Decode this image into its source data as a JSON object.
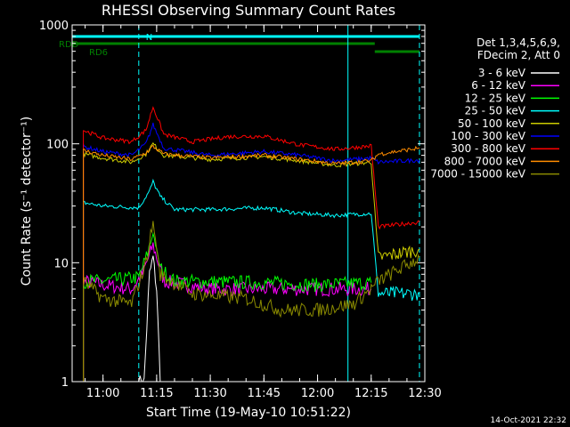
{
  "chart_data": {
    "type": "line",
    "title": "RHESSI Observing Summary Count Rates",
    "xlabel": "Start Time (19-May-10 10:51:22)",
    "ylabel": "Count Rate (s⁻¹ detector⁻¹)",
    "ylim": [
      1,
      1000
    ],
    "yscale": "log",
    "xlim": [
      "10:51:22",
      "12:30:00"
    ],
    "x_ticks": [
      "11:00",
      "11:15",
      "11:30",
      "11:45",
      "12:00",
      "12:15",
      "12:30"
    ],
    "y_ticks": [
      "1",
      "10",
      "100",
      "1000"
    ],
    "legend_header": [
      "Det 1,3,4,5,6,9,",
      "FDecim 2, Att 0"
    ],
    "legend_position": "right",
    "timestamp": "14-Oct-2021 22:32",
    "flags": [
      {
        "label": "N",
        "color": "#00ffff",
        "segments": [
          [
            "10:51:22",
            "11:10:00"
          ],
          [
            "11:10:00",
            "12:08:30"
          ],
          [
            "12:08:30",
            "12:28:30"
          ]
        ]
      },
      {
        "label": "RDD",
        "color": "#008000",
        "segments": [
          [
            "10:51:22",
            "12:16:00"
          ]
        ]
      },
      {
        "label": "RD6",
        "color": "#008000",
        "segments": [
          [
            "12:16:00",
            "12:28:30"
          ]
        ]
      }
    ],
    "data_gaps": [
      [
        "10:51:22",
        "10:54:30"
      ],
      [
        "12:16:00",
        "12:17:00"
      ]
    ],
    "dashed_markers": [
      "11:10:00",
      "12:28:30"
    ],
    "solid_markers": [
      "12:08:30"
    ],
    "series": [
      {
        "name": "3 - 6 keV",
        "color": "#ffffff",
        "points": [
          [
            "11:10:00",
            1
          ],
          [
            "11:11:30",
            1
          ],
          [
            "11:13:00",
            8
          ],
          [
            "11:14:00",
            11
          ],
          [
            "11:15:00",
            6
          ],
          [
            "11:16:00",
            1
          ]
        ]
      },
      {
        "name": "6 - 12 keV",
        "color": "#ff00ff",
        "points": [
          [
            "10:54:30",
            7
          ],
          [
            "11:00:00",
            6.5
          ],
          [
            "11:08:00",
            6
          ],
          [
            "11:11:00",
            8
          ],
          [
            "11:14:00",
            14
          ],
          [
            "11:17:00",
            7
          ],
          [
            "11:30:00",
            6
          ],
          [
            "11:45:00",
            6
          ],
          [
            "12:00:00",
            6
          ],
          [
            "12:15:00",
            6
          ]
        ]
      },
      {
        "name": "12 - 25 keV",
        "color": "#00ff00",
        "points": [
          [
            "10:54:30",
            7
          ],
          [
            "11:00:00",
            7
          ],
          [
            "11:10:00",
            7.5
          ],
          [
            "11:12:30",
            12
          ],
          [
            "11:14:00",
            18
          ],
          [
            "11:16:00",
            9
          ],
          [
            "11:20:00",
            7
          ],
          [
            "11:45:00",
            6.8
          ],
          [
            "12:00:00",
            6.5
          ],
          [
            "12:15:00",
            6.8
          ]
        ]
      },
      {
        "name": "25 - 50 keV",
        "color": "#00ffff",
        "points": [
          [
            "10:54:30",
            32
          ],
          [
            "11:00:00",
            30
          ],
          [
            "11:10:00",
            29
          ],
          [
            "11:13:00",
            40
          ],
          [
            "11:14:00",
            48
          ],
          [
            "11:16:00",
            36
          ],
          [
            "11:20:00",
            28
          ],
          [
            "11:30:00",
            28
          ],
          [
            "11:45:00",
            29
          ],
          [
            "11:55:00",
            26
          ],
          [
            "12:05:00",
            25
          ],
          [
            "12:15:00",
            26
          ],
          [
            "12:17:00",
            5.5
          ],
          [
            "12:28:30",
            5.5
          ]
        ]
      },
      {
        "name": "50 - 100 keV",
        "color": "#cccc00",
        "points": [
          [
            "10:54:30",
            82
          ],
          [
            "11:00:00",
            76
          ],
          [
            "11:08:00",
            70
          ],
          [
            "11:12:00",
            82
          ],
          [
            "11:14:00",
            100
          ],
          [
            "11:17:00",
            80
          ],
          [
            "11:30:00",
            74
          ],
          [
            "11:45:00",
            78
          ],
          [
            "11:55:00",
            72
          ],
          [
            "12:05:00",
            66
          ],
          [
            "12:15:00",
            70
          ],
          [
            "12:17:00",
            11
          ],
          [
            "12:28:30",
            13
          ]
        ]
      },
      {
        "name": "100 - 300 keV",
        "color": "#0000ff",
        "points": [
          [
            "10:54:30",
            95
          ],
          [
            "11:00:00",
            86
          ],
          [
            "11:08:00",
            80
          ],
          [
            "11:12:00",
            100
          ],
          [
            "11:14:00",
            145
          ],
          [
            "11:17:00",
            92
          ],
          [
            "11:30:00",
            80
          ],
          [
            "11:45:00",
            86
          ],
          [
            "11:55:00",
            80
          ],
          [
            "12:05:00",
            72
          ],
          [
            "12:15:00",
            76
          ],
          [
            "12:17:00",
            70
          ],
          [
            "12:28:30",
            73
          ]
        ]
      },
      {
        "name": "300 - 800 keV",
        "color": "#ff0000",
        "points": [
          [
            "10:54:30",
            130
          ],
          [
            "11:00:00",
            112
          ],
          [
            "11:08:00",
            104
          ],
          [
            "11:12:00",
            130
          ],
          [
            "11:14:00",
            205
          ],
          [
            "11:17:00",
            120
          ],
          [
            "11:25:00",
            104
          ],
          [
            "11:35:00",
            115
          ],
          [
            "11:45:00",
            116
          ],
          [
            "11:55:00",
            98
          ],
          [
            "12:05:00",
            90
          ],
          [
            "12:15:00",
            96
          ],
          [
            "12:17:00",
            20
          ],
          [
            "12:28:30",
            22
          ]
        ]
      },
      {
        "name": "800 - 7000 keV",
        "color": "#ff8c00",
        "points": [
          [
            "10:54:30",
            88
          ],
          [
            "11:00:00",
            80
          ],
          [
            "11:08:00",
            74
          ],
          [
            "11:12:00",
            84
          ],
          [
            "11:14:00",
            95
          ],
          [
            "11:17:00",
            82
          ],
          [
            "11:30:00",
            76
          ],
          [
            "11:45:00",
            80
          ],
          [
            "11:55:00",
            74
          ],
          [
            "12:05:00",
            68
          ],
          [
            "12:15:00",
            72
          ],
          [
            "12:17:00",
            82
          ],
          [
            "12:28:30",
            92
          ]
        ]
      },
      {
        "name": "7000 - 15000 keV",
        "color": "#8b8b00",
        "points": [
          [
            "10:54:30",
            7
          ],
          [
            "11:00:00",
            5
          ],
          [
            "11:08:00",
            4.5
          ],
          [
            "11:12:00",
            10
          ],
          [
            "11:14:00",
            22
          ],
          [
            "11:16:00",
            8
          ],
          [
            "11:25:00",
            5.5
          ],
          [
            "11:40:00",
            5
          ],
          [
            "11:50:00",
            4
          ],
          [
            "12:00:00",
            4
          ],
          [
            "12:10:00",
            4.5
          ],
          [
            "12:15:00",
            6
          ],
          [
            "12:17:00",
            7
          ],
          [
            "12:28:30",
            11
          ]
        ]
      }
    ]
  }
}
